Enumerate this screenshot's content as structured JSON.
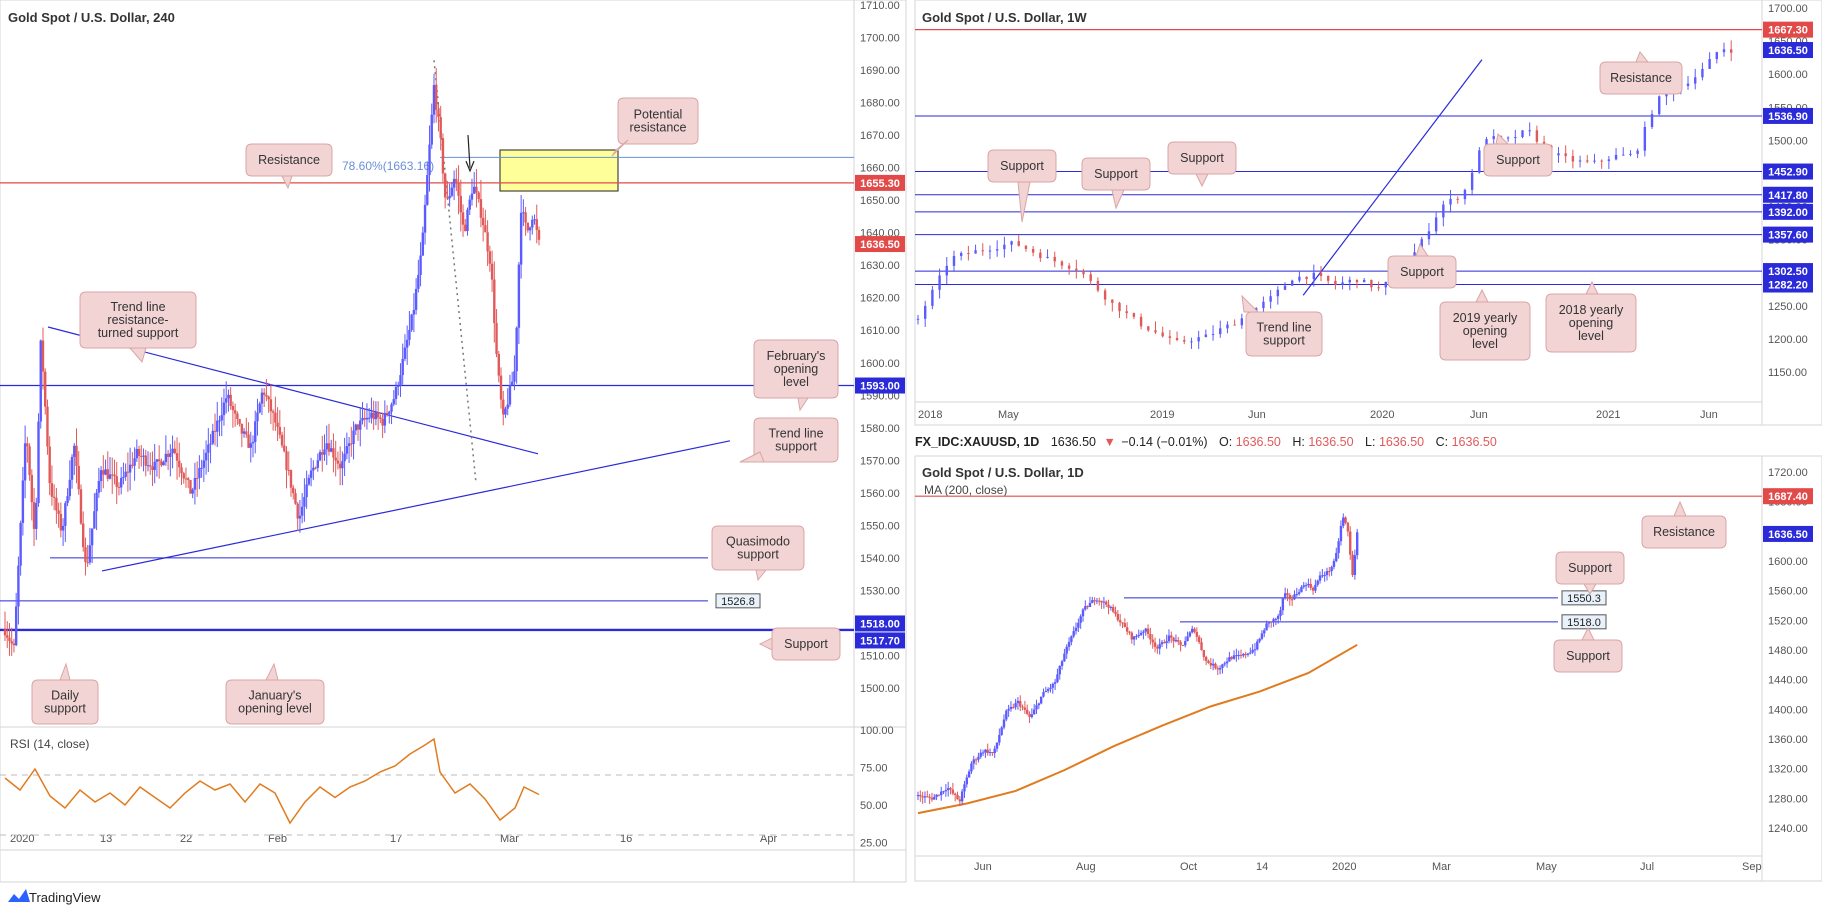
{
  "colors": {
    "up": "#5B5BFF",
    "down": "#E05A5A",
    "resistance": "#E24A4A",
    "support": "#2A2AD8",
    "rsi": "#E07B1E",
    "ma": "#E07B1E",
    "fib": "#6A8FD8",
    "callout_bg": "#F2D4D4",
    "callout_border": "#D9A5A5",
    "zone": "#FFFF99"
  },
  "footer": {
    "brand": "TradingView",
    "brand_icon": "tradingview-logo"
  },
  "panel_4h": {
    "title": "Gold Spot / U.S. Dollar, 240",
    "axis_ticks": [
      "1710.00",
      "1700.00",
      "1690.00",
      "1680.00",
      "1670.00",
      "1660.00",
      "1650.00",
      "1640.00",
      "1630.00",
      "1620.00",
      "1610.00",
      "1600.00",
      "1590.00",
      "1580.00",
      "1570.00",
      "1560.00",
      "1550.00",
      "1540.00",
      "1530.00",
      "1520.00",
      "1510.00",
      "1500.00"
    ],
    "x_ticks": [
      "2020",
      "13",
      "22",
      "Feb",
      "17",
      "Mar",
      "16",
      "Apr"
    ],
    "price_tags": [
      "1655.30",
      "1636.50",
      "1593.00",
      "1518.00",
      "1517.70"
    ],
    "boxed_levels": [
      "1540.0",
      "1526.8"
    ],
    "fib_label": "78.60%(1663.16)",
    "callouts": [
      "Resistance",
      "Potential\nresistance",
      "Trend line\nresistance-\nturned support",
      "February's\nopening\nlevel",
      "Trend line\nsupport",
      "Quasimodo\nsupport",
      "Support",
      "Daily\nsupport",
      "January's\nopening level"
    ],
    "rsi": {
      "label": "RSI (14, close)",
      "ticks": [
        "100.00",
        "75.00",
        "50.00",
        "25.00"
      ]
    }
  },
  "panel_1w": {
    "title": "Gold Spot / U.S. Dollar, 1W",
    "axis_ticks": [
      "1700.00",
      "1650.00",
      "1600.00",
      "1550.00",
      "1500.00",
      "1450.00",
      "1400.00",
      "1350.00",
      "1300.00",
      "1250.00",
      "1200.00",
      "1150.00"
    ],
    "x_ticks": [
      "2018",
      "May",
      "2019",
      "Jun",
      "2020",
      "Jun",
      "2021",
      "Jun"
    ],
    "price_tags": [
      "1667.30",
      "1636.50",
      "1536.90",
      "1452.90",
      "1417.80",
      "1392.00",
      "1357.60",
      "1302.50",
      "1282.20"
    ],
    "callouts": [
      "Resistance",
      "Support",
      "Support",
      "Support",
      "Support",
      "Support",
      "Trend line\nsupport",
      "2019 yearly\nopening\nlevel",
      "2018 yearly\nopening\nlevel"
    ]
  },
  "panel_1d": {
    "header": {
      "symbol": "FX_IDC:XAUUSD, 1D",
      "price": "1636.50",
      "change": "−0.14 (−0.01%)",
      "o_label": "O:",
      "o": "1636.50",
      "h_label": "H:",
      "h": "1636.50",
      "l_label": "L:",
      "l": "1636.50",
      "c_label": "C:",
      "c": "1636.50"
    },
    "title": "Gold Spot / U.S. Dollar, 1D",
    "ma_label": "MA (200, close)",
    "axis_ticks": [
      "1720.00",
      "1680.00",
      "1640.00",
      "1600.00",
      "1560.00",
      "1520.00",
      "1480.00",
      "1440.00",
      "1400.00",
      "1360.00",
      "1320.00",
      "1280.00",
      "1240.00"
    ],
    "x_ticks": [
      "Jun",
      "Aug",
      "Oct",
      "14",
      "2020",
      "Mar",
      "May",
      "Jul",
      "Sep"
    ],
    "price_tags": [
      "1687.40",
      "1636.50"
    ],
    "boxed_levels": [
      "1550.3",
      "1518.0"
    ],
    "callouts": [
      "Resistance",
      "Support",
      "Support"
    ]
  },
  "chart_data": [
    {
      "type": "candlestick",
      "title": "Gold Spot / U.S. Dollar, 240",
      "ylim": [
        1500,
        1710
      ],
      "last_price": 1636.5,
      "levels": [
        {
          "name": "Resistance",
          "value": 1655.3
        },
        {
          "name": "78.60% Fibonacci",
          "value": 1663.16
        },
        {
          "name": "February's opening level",
          "value": 1593.0
        },
        {
          "name": "Quasimodo support",
          "value": 1540.0
        },
        {
          "name": "Support",
          "value": 1526.8
        },
        {
          "name": "Daily support",
          "value": 1518.0
        },
        {
          "name": "January's opening level",
          "value": 1517.7
        }
      ],
      "zone": {
        "name": "Potential resistance",
        "from": 1655.3,
        "to": 1667.0
      },
      "path": [
        [
          0,
          1518
        ],
        [
          6,
          1512
        ],
        [
          14,
          1580
        ],
        [
          20,
          1545
        ],
        [
          24,
          1608
        ],
        [
          30,
          1562
        ],
        [
          38,
          1548
        ],
        [
          46,
          1575
        ],
        [
          54,
          1536
        ],
        [
          64,
          1568
        ],
        [
          76,
          1562
        ],
        [
          88,
          1572
        ],
        [
          100,
          1568
        ],
        [
          112,
          1574
        ],
        [
          124,
          1560
        ],
        [
          136,
          1574
        ],
        [
          148,
          1590
        ],
        [
          156,
          1580
        ],
        [
          164,
          1574
        ],
        [
          172,
          1592
        ],
        [
          180,
          1582
        ],
        [
          188,
          1568
        ],
        [
          196,
          1552
        ],
        [
          204,
          1566
        ],
        [
          214,
          1576
        ],
        [
          224,
          1568
        ],
        [
          234,
          1580
        ],
        [
          244,
          1584
        ],
        [
          252,
          1582
        ],
        [
          260,
          1590
        ],
        [
          266,
          1602
        ],
        [
          272,
          1615
        ],
        [
          278,
          1635
        ],
        [
          282,
          1660
        ],
        [
          286,
          1685
        ],
        [
          290,
          1670
        ],
        [
          294,
          1648
        ],
        [
          300,
          1658
        ],
        [
          306,
          1640
        ],
        [
          312,
          1655
        ],
        [
          318,
          1645
        ],
        [
          324,
          1630
        ],
        [
          328,
          1600
        ],
        [
          332,
          1582
        ],
        [
          336,
          1590
        ],
        [
          340,
          1598
        ],
        [
          344,
          1648
        ],
        [
          348,
          1640
        ],
        [
          352,
          1646
        ],
        [
          356,
          1636.5
        ]
      ],
      "rsi": {
        "ylim": [
          20,
          100
        ],
        "levels": [
          30,
          70
        ],
        "path": [
          [
            0,
            68
          ],
          [
            10,
            60
          ],
          [
            20,
            74
          ],
          [
            30,
            56
          ],
          [
            40,
            48
          ],
          [
            50,
            60
          ],
          [
            60,
            52
          ],
          [
            70,
            58
          ],
          [
            80,
            50
          ],
          [
            90,
            62
          ],
          [
            100,
            55
          ],
          [
            110,
            48
          ],
          [
            120,
            58
          ],
          [
            130,
            66
          ],
          [
            140,
            60
          ],
          [
            150,
            64
          ],
          [
            160,
            52
          ],
          [
            170,
            64
          ],
          [
            180,
            58
          ],
          [
            190,
            38
          ],
          [
            200,
            52
          ],
          [
            210,
            62
          ],
          [
            220,
            55
          ],
          [
            230,
            62
          ],
          [
            240,
            66
          ],
          [
            250,
            72
          ],
          [
            260,
            76
          ],
          [
            270,
            84
          ],
          [
            280,
            90
          ],
          [
            286,
            94
          ],
          [
            290,
            72
          ],
          [
            300,
            58
          ],
          [
            310,
            64
          ],
          [
            320,
            54
          ],
          [
            330,
            40
          ],
          [
            340,
            48
          ],
          [
            346,
            62
          ],
          [
            350,
            60
          ],
          [
            356,
            57
          ]
        ]
      }
    },
    {
      "type": "candlestick",
      "title": "Gold Spot / U.S. Dollar, 1W",
      "ylim": [
        1100,
        1710
      ],
      "last_price": 1636.5,
      "levels": [
        {
          "name": "Resistance",
          "value": 1667.3
        },
        {
          "name": "Support",
          "value": 1536.9
        },
        {
          "name": "Support",
          "value": 1452.9
        },
        {
          "name": "Support",
          "value": 1417.8
        },
        {
          "name": "Support",
          "value": 1392.0
        },
        {
          "name": "Support",
          "value": 1357.6
        },
        {
          "name": "2019 yearly opening level",
          "value": 1282.2
        },
        {
          "name": "2018 yearly opening level",
          "value": 1302.5
        }
      ],
      "trendline": {
        "name": "Trend line support",
        "from": [
          72,
          1266
        ],
        "to": [
          144,
          1618
        ]
      },
      "path": [
        [
          0,
          1230
        ],
        [
          6,
          1322
        ],
        [
          12,
          1335
        ],
        [
          18,
          1345
        ],
        [
          24,
          1322
        ],
        [
          30,
          1305
        ],
        [
          36,
          1255
        ],
        [
          42,
          1220
        ],
        [
          48,
          1194
        ],
        [
          54,
          1204
        ],
        [
          60,
          1228
        ],
        [
          66,
          1262
        ],
        [
          70,
          1292
        ],
        [
          74,
          1296
        ],
        [
          78,
          1282
        ],
        [
          82,
          1290
        ],
        [
          86,
          1276
        ],
        [
          90,
          1296
        ],
        [
          94,
          1345
        ],
        [
          98,
          1402
        ],
        [
          102,
          1420
        ],
        [
          106,
          1505
        ],
        [
          110,
          1500
        ],
        [
          114,
          1515
        ],
        [
          118,
          1482
        ],
        [
          122,
          1470
        ],
        [
          126,
          1465
        ],
        [
          130,
          1476
        ],
        [
          134,
          1478
        ],
        [
          138,
          1560
        ],
        [
          142,
          1580
        ],
        [
          146,
          1600
        ],
        [
          150,
          1640
        ],
        [
          152,
          1636.5
        ]
      ]
    },
    {
      "type": "candlestick",
      "title": "Gold Spot / U.S. Dollar, 1D",
      "ylim": [
        1220,
        1730
      ],
      "last_price": 1636.5,
      "levels": [
        {
          "name": "Resistance",
          "value": 1687.4
        },
        {
          "name": "Support",
          "value": 1550.3
        },
        {
          "name": "Support",
          "value": 1518.0
        }
      ],
      "ma": {
        "name": "MA (200, close)",
        "path": [
          [
            0,
            1260
          ],
          [
            40,
            1273
          ],
          [
            80,
            1290
          ],
          [
            120,
            1318
          ],
          [
            160,
            1350
          ],
          [
            200,
            1378
          ],
          [
            240,
            1404
          ],
          [
            280,
            1424
          ],
          [
            320,
            1449
          ],
          [
            360,
            1487
          ]
        ]
      },
      "path": [
        [
          0,
          1283
        ],
        [
          12,
          1280
        ],
        [
          24,
          1295
        ],
        [
          34,
          1276
        ],
        [
          44,
          1328
        ],
        [
          54,
          1345
        ],
        [
          62,
          1340
        ],
        [
          72,
          1395
        ],
        [
          82,
          1410
        ],
        [
          92,
          1388
        ],
        [
          102,
          1420
        ],
        [
          112,
          1435
        ],
        [
          120,
          1475
        ],
        [
          128,
          1505
        ],
        [
          136,
          1535
        ],
        [
          146,
          1550
        ],
        [
          156,
          1540
        ],
        [
          166,
          1518
        ],
        [
          176,
          1495
        ],
        [
          186,
          1508
        ],
        [
          196,
          1482
        ],
        [
          206,
          1498
        ],
        [
          216,
          1485
        ],
        [
          226,
          1510
        ],
        [
          236,
          1465
        ],
        [
          246,
          1455
        ],
        [
          256,
          1470
        ],
        [
          266,
          1472
        ],
        [
          276,
          1482
        ],
        [
          286,
          1515
        ],
        [
          296,
          1525
        ],
        [
          300,
          1555
        ],
        [
          306,
          1548
        ],
        [
          312,
          1560
        ],
        [
          318,
          1570
        ],
        [
          324,
          1562
        ],
        [
          330,
          1580
        ],
        [
          336,
          1585
        ],
        [
          342,
          1600
        ],
        [
          348,
          1660
        ],
        [
          352,
          1645
        ],
        [
          356,
          1580
        ],
        [
          360,
          1636.5
        ]
      ]
    }
  ]
}
